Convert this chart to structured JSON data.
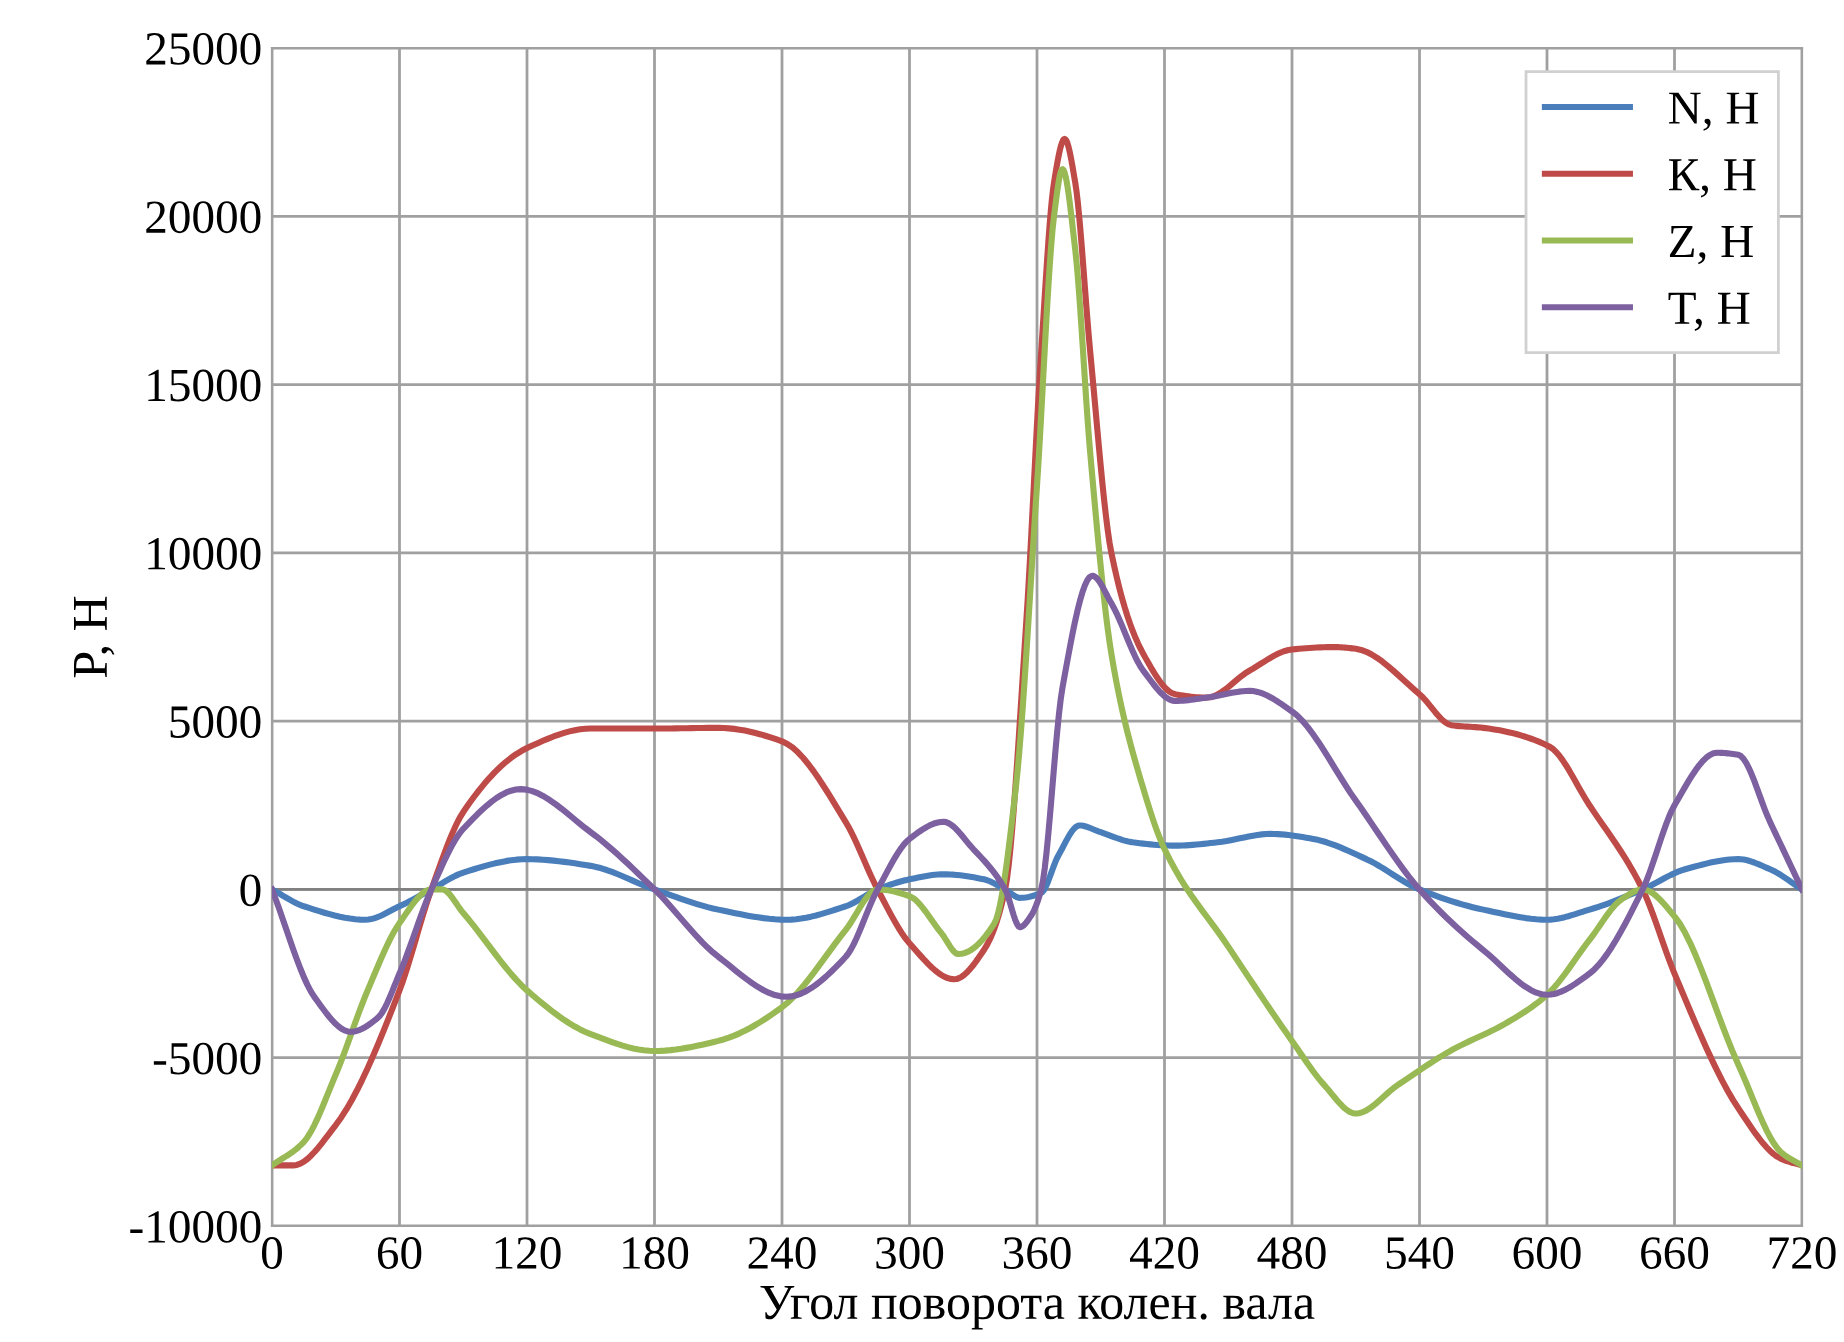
{
  "chart_data": {
    "type": "line",
    "xlabel": "Угол поворота колен. вала",
    "ylabel": "P, Н",
    "xlim": [
      0,
      720
    ],
    "xticks": [
      0,
      60,
      120,
      180,
      240,
      300,
      360,
      420,
      480,
      540,
      600,
      660,
      720
    ],
    "ylim": [
      -10000,
      25000
    ],
    "yticks": [
      -10000,
      -5000,
      0,
      5000,
      10000,
      15000,
      20000,
      25000
    ],
    "grid": true,
    "legend": "top right",
    "marker": "none",
    "line_style": "solid",
    "series": [
      {
        "name": "N, Н",
        "color": "#4a7ebb",
        "x": [
          0,
          15,
          44,
          60,
          75,
          90,
          120,
          150,
          180,
          210,
          242,
          270,
          285,
          300,
          316,
          335,
          345,
          352,
          362,
          370,
          380,
          390,
          405,
          425,
          445,
          470,
          490,
          515,
          540,
          570,
          600,
          620,
          645,
          665,
          690,
          705,
          720
        ],
        "values": [
          0,
          -500,
          -900,
          -500,
          0,
          500,
          900,
          700,
          0,
          -600,
          -900,
          -500,
          0,
          300,
          450,
          300,
          0,
          -250,
          -100,
          1000,
          1900,
          1700,
          1400,
          1300,
          1400,
          1650,
          1500,
          900,
          0,
          -600,
          -900,
          -600,
          0,
          600,
          900,
          600,
          0
        ]
      },
      {
        "name": "К, Н",
        "color": "#be4b48",
        "x": [
          0,
          10,
          30,
          60,
          75,
          90,
          120,
          150,
          180,
          210,
          240,
          270,
          285,
          300,
          321,
          335,
          345,
          355,
          362,
          368,
          373,
          378,
          385,
          395,
          410,
          425,
          440,
          460,
          480,
          500,
          510,
          540,
          555,
          570,
          601,
          620,
          645,
          660,
          690,
          710,
          720
        ],
        "values": [
          -8200,
          -8200,
          -7000,
          -3000,
          0,
          2300,
          4200,
          4780,
          4780,
          4800,
          4400,
          2000,
          0,
          -1600,
          -2670,
          -1800,
          0,
          8000,
          16000,
          21000,
          22300,
          21000,
          16000,
          10000,
          7000,
          5800,
          5700,
          6500,
          7130,
          7200,
          7150,
          5800,
          4880,
          4800,
          4250,
          2500,
          0,
          -2500,
          -6500,
          -8000,
          -8200
        ]
      },
      {
        "name": "Z, Н",
        "color": "#98b954",
        "x": [
          0,
          15,
          30,
          45,
          60,
          75,
          80,
          90,
          120,
          150,
          180,
          210,
          240,
          270,
          285,
          300,
          315,
          323,
          340,
          350,
          360,
          368,
          372,
          378,
          385,
          395,
          410,
          420,
          450,
          480,
          495,
          510,
          530,
          555,
          580,
          600,
          620,
          635,
          645,
          660,
          690,
          710,
          720
        ],
        "values": [
          -8200,
          -7500,
          -5500,
          -3000,
          -1000,
          0,
          0,
          -700,
          -3000,
          -4300,
          -4800,
          -4500,
          -3500,
          -1200,
          0,
          -200,
          -1300,
          -1920,
          -1000,
          3000,
          12000,
          20000,
          21400,
          19000,
          13000,
          7000,
          3000,
          1200,
          -1700,
          -4500,
          -5800,
          -6660,
          -5800,
          -4780,
          -4000,
          -3130,
          -1500,
          -300,
          0,
          -800,
          -5200,
          -7800,
          -8200
        ]
      },
      {
        "name": "T, Н",
        "color": "#7d60a0",
        "x": [
          0,
          20,
          37,
          50,
          60,
          75,
          90,
          117,
          150,
          180,
          210,
          242,
          270,
          285,
          300,
          316,
          330,
          345,
          352,
          357,
          362,
          372,
          386,
          395,
          410,
          425,
          440,
          460,
          480,
          510,
          540,
          570,
          600,
          620,
          645,
          660,
          680,
          690,
          705,
          720
        ],
        "values": [
          0,
          -3200,
          -4230,
          -3800,
          -2500,
          0,
          1800,
          2980,
          1700,
          0,
          -2000,
          -3190,
          -2000,
          0,
          1500,
          2010,
          1200,
          0,
          -1120,
          -800,
          0,
          6000,
          9320,
          8500,
          6500,
          5600,
          5700,
          5900,
          5290,
          2640,
          0,
          -1800,
          -3130,
          -2500,
          0,
          2500,
          4060,
          4000,
          2000,
          0
        ]
      }
    ]
  }
}
